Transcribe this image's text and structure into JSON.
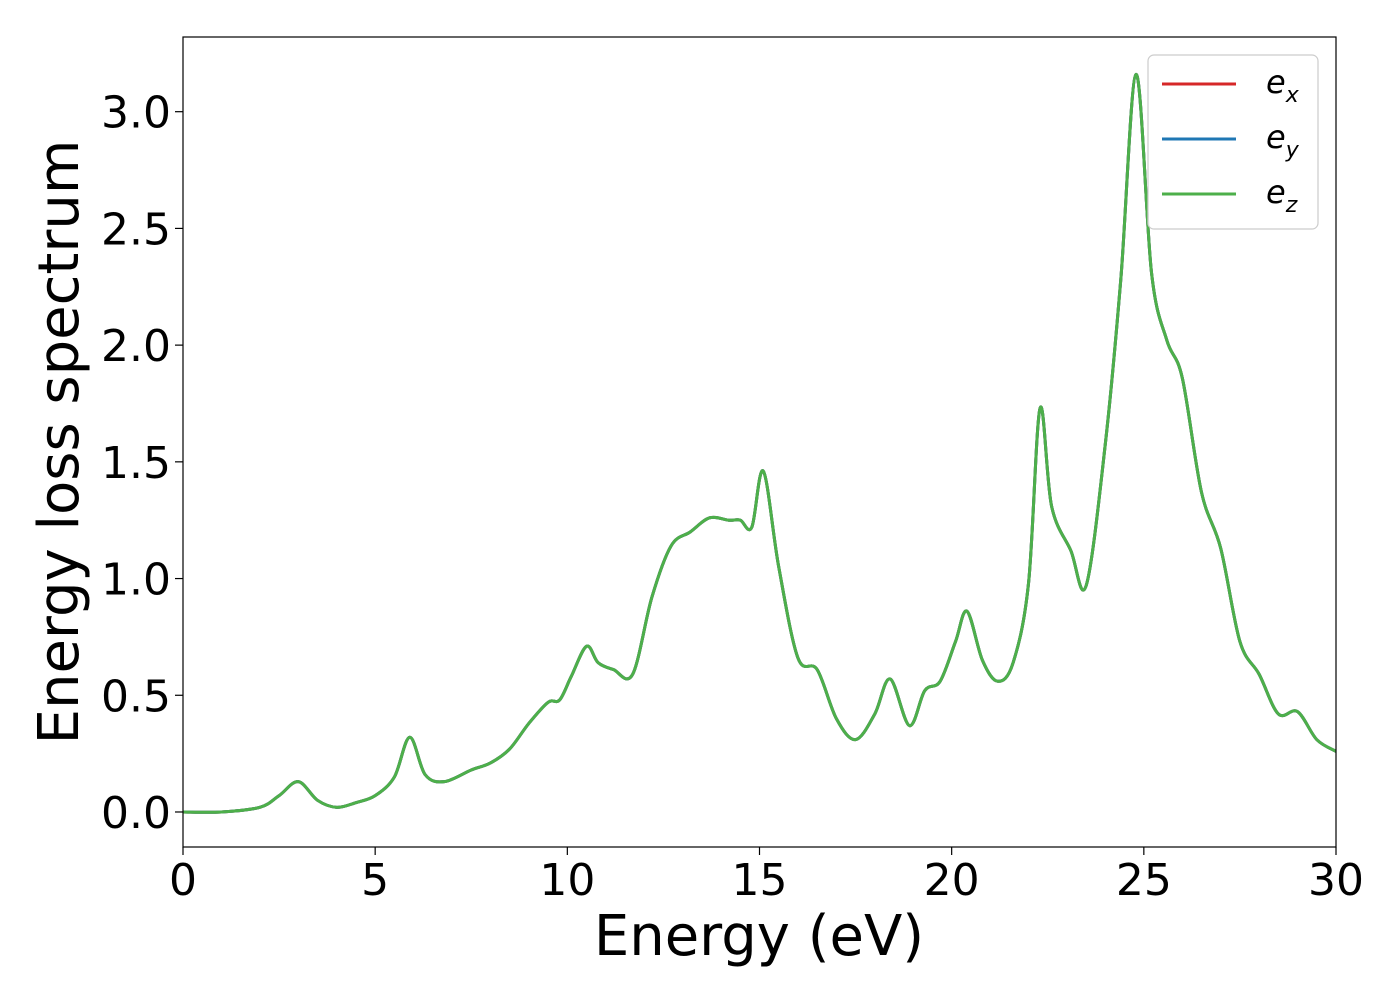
{
  "chart_data": {
    "type": "line",
    "title": "",
    "xlabel": "Energy (eV)",
    "ylabel": "Energy loss spectrum",
    "xlim": [
      0,
      30
    ],
    "ylim": [
      -0.15,
      3.32
    ],
    "xticks": [
      0,
      5,
      10,
      15,
      20,
      25,
      30
    ],
    "xtick_labels": [
      "0",
      "5",
      "10",
      "15",
      "20",
      "25",
      "30"
    ],
    "yticks": [
      0.0,
      0.5,
      1.0,
      1.5,
      2.0,
      2.5,
      3.0
    ],
    "ytick_labels": [
      "0.0",
      "0.5",
      "1.0",
      "1.5",
      "2.0",
      "2.5",
      "3.0"
    ],
    "grid": false,
    "legend_position": "top-right",
    "x": [
      0,
      1,
      2,
      2.5,
      3,
      3.5,
      4,
      4.5,
      5,
      5.5,
      5.9,
      6.3,
      6.8,
      7.5,
      8,
      8.5,
      9,
      9.5,
      9.8,
      10.1,
      10.5,
      10.8,
      11.2,
      11.7,
      12.2,
      12.7,
      13.2,
      13.7,
      14.2,
      14.5,
      14.8,
      15.1,
      15.5,
      16,
      16.5,
      17,
      17.5,
      18,
      18.4,
      18.9,
      19.3,
      19.7,
      20.1,
      20.4,
      20.8,
      21.2,
      21.6,
      22,
      22.3,
      22.6,
      23.1,
      23.5,
      24,
      24.4,
      24.8,
      25.2,
      25.6,
      26,
      26.5,
      27,
      27.5,
      28,
      28.5,
      29,
      29.5,
      30
    ],
    "series": [
      {
        "name": "e_x",
        "label_base": "e",
        "label_sub": "x",
        "color": "#d62728",
        "values": [
          0.0,
          0.0,
          0.02,
          0.07,
          0.13,
          0.05,
          0.02,
          0.04,
          0.07,
          0.15,
          0.32,
          0.16,
          0.13,
          0.18,
          0.21,
          0.27,
          0.38,
          0.47,
          0.48,
          0.58,
          0.71,
          0.64,
          0.61,
          0.59,
          0.92,
          1.14,
          1.2,
          1.26,
          1.25,
          1.25,
          1.22,
          1.46,
          1.05,
          0.66,
          0.61,
          0.4,
          0.31,
          0.42,
          0.57,
          0.37,
          0.52,
          0.56,
          0.73,
          0.86,
          0.65,
          0.56,
          0.64,
          0.98,
          1.73,
          1.31,
          1.12,
          0.97,
          1.58,
          2.28,
          3.16,
          2.31,
          2.02,
          1.86,
          1.37,
          1.13,
          0.73,
          0.59,
          0.42,
          0.43,
          0.31,
          0.26
        ]
      },
      {
        "name": "e_y",
        "label_base": "e",
        "label_sub": "y",
        "color": "#1f77b4",
        "values": [
          0.0,
          0.0,
          0.02,
          0.07,
          0.13,
          0.05,
          0.02,
          0.04,
          0.07,
          0.15,
          0.32,
          0.16,
          0.13,
          0.18,
          0.21,
          0.27,
          0.38,
          0.47,
          0.48,
          0.58,
          0.71,
          0.64,
          0.61,
          0.59,
          0.92,
          1.14,
          1.2,
          1.26,
          1.25,
          1.25,
          1.22,
          1.46,
          1.05,
          0.66,
          0.61,
          0.4,
          0.31,
          0.42,
          0.57,
          0.37,
          0.52,
          0.56,
          0.73,
          0.86,
          0.65,
          0.56,
          0.64,
          0.98,
          1.73,
          1.31,
          1.12,
          0.97,
          1.58,
          2.28,
          3.16,
          2.31,
          2.02,
          1.86,
          1.37,
          1.13,
          0.73,
          0.59,
          0.42,
          0.43,
          0.31,
          0.26
        ]
      },
      {
        "name": "e_z",
        "label_base": "e",
        "label_sub": "z",
        "color": "#4daf4a",
        "values": [
          0.0,
          0.0,
          0.02,
          0.07,
          0.13,
          0.05,
          0.02,
          0.04,
          0.07,
          0.15,
          0.32,
          0.16,
          0.13,
          0.18,
          0.21,
          0.27,
          0.38,
          0.47,
          0.48,
          0.58,
          0.71,
          0.64,
          0.61,
          0.59,
          0.92,
          1.14,
          1.2,
          1.26,
          1.25,
          1.25,
          1.22,
          1.46,
          1.05,
          0.66,
          0.61,
          0.4,
          0.31,
          0.42,
          0.57,
          0.37,
          0.52,
          0.56,
          0.73,
          0.86,
          0.65,
          0.56,
          0.64,
          0.98,
          1.73,
          1.31,
          1.12,
          0.97,
          1.58,
          2.28,
          3.16,
          2.31,
          2.02,
          1.86,
          1.37,
          1.13,
          0.73,
          0.59,
          0.42,
          0.43,
          0.31,
          0.26
        ]
      }
    ]
  }
}
